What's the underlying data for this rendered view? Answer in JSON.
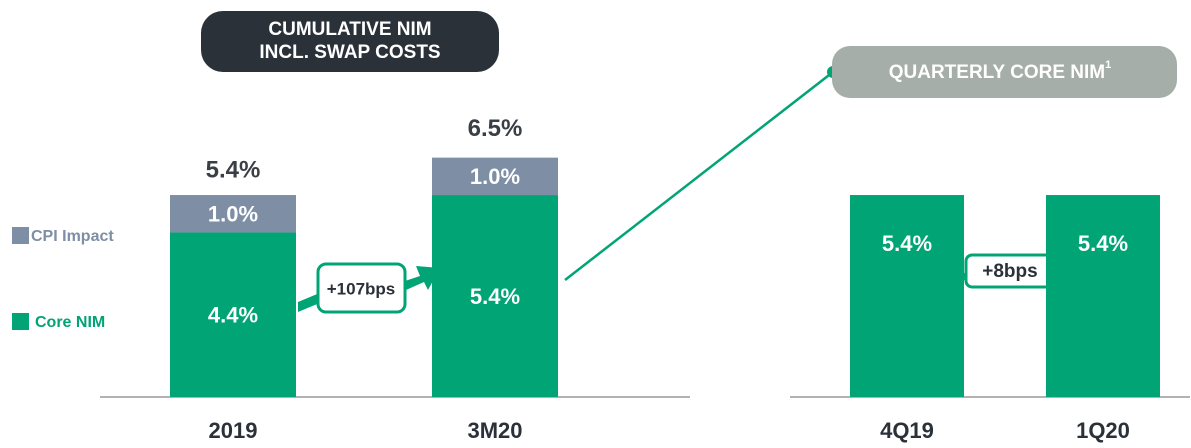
{
  "chart_data": [
    {
      "type": "stacked-bar",
      "title_lines": [
        "CUMULATIVE NIM",
        "INCL. SWAP COSTS"
      ],
      "categories": [
        "2019",
        "3M20"
      ],
      "series": [
        {
          "name": "Core NIM",
          "color": "#00a475",
          "values": [
            4.4,
            5.4
          ],
          "value_labels": [
            "4.4%",
            "5.4%"
          ]
        },
        {
          "name": "CPI Impact",
          "color": "#7d8ea5",
          "values": [
            1.0,
            1.0
          ],
          "value_labels": [
            "1.0%",
            "1.0%"
          ]
        }
      ],
      "totals": [
        5.4,
        6.5
      ],
      "total_labels": [
        "5.4%",
        "6.5%"
      ],
      "annotation": "+107bps"
    },
    {
      "type": "bar",
      "title": "QUARTERLY CORE NIM",
      "title_footnote": "1",
      "categories": [
        "4Q19",
        "1Q20"
      ],
      "series": [
        {
          "name": "Core NIM",
          "color": "#00a475",
          "values": [
            5.4,
            5.4
          ],
          "value_labels": [
            "5.4%",
            "5.4%"
          ]
        }
      ],
      "annotation": "+8bps"
    }
  ]
}
